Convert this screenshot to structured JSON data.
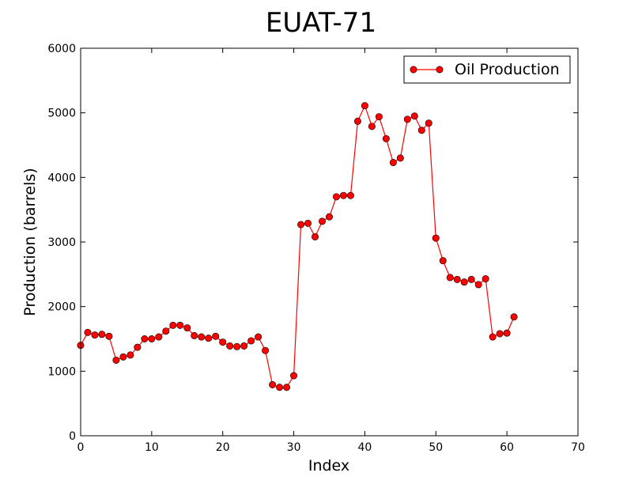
{
  "chart_data": {
    "type": "line",
    "title": "EUAT-71",
    "xlabel": "Index",
    "ylabel": "Production (barrels)",
    "xlim": [
      0,
      70
    ],
    "ylim": [
      0,
      6000
    ],
    "xticks": [
      0,
      10,
      20,
      30,
      40,
      50,
      60,
      70
    ],
    "yticks": [
      0,
      1000,
      2000,
      3000,
      4000,
      5000,
      6000
    ],
    "grid": false,
    "legend_position": "top-right",
    "series": [
      {
        "name": "Oil Production",
        "color": "#ff0000",
        "marker": "circle",
        "x": [
          0,
          1,
          2,
          3,
          4,
          5,
          6,
          7,
          8,
          9,
          10,
          11,
          12,
          13,
          14,
          15,
          16,
          17,
          18,
          19,
          20,
          21,
          22,
          23,
          24,
          25,
          26,
          27,
          28,
          29,
          30,
          31,
          32,
          33,
          34,
          35,
          36,
          37,
          38,
          39,
          40,
          41,
          42,
          43,
          44,
          45,
          46,
          47,
          48,
          49,
          50,
          51,
          52,
          53,
          54,
          55,
          56,
          57,
          58,
          59,
          60,
          61
        ],
        "values": [
          1400,
          1600,
          1560,
          1570,
          1540,
          1170,
          1220,
          1250,
          1370,
          1500,
          1500,
          1530,
          1620,
          1710,
          1710,
          1670,
          1550,
          1530,
          1510,
          1540,
          1450,
          1390,
          1380,
          1390,
          1470,
          1530,
          1320,
          790,
          750,
          750,
          930,
          3270,
          3290,
          3080,
          3320,
          3390,
          3700,
          3720,
          3720,
          4870,
          5110,
          4790,
          4940,
          4600,
          4230,
          4300,
          4900,
          4950,
          4730,
          4840,
          3060,
          2710,
          2450,
          2420,
          2380,
          2420,
          2340,
          2430,
          1530,
          1580,
          1590,
          1840
        ]
      }
    ]
  }
}
